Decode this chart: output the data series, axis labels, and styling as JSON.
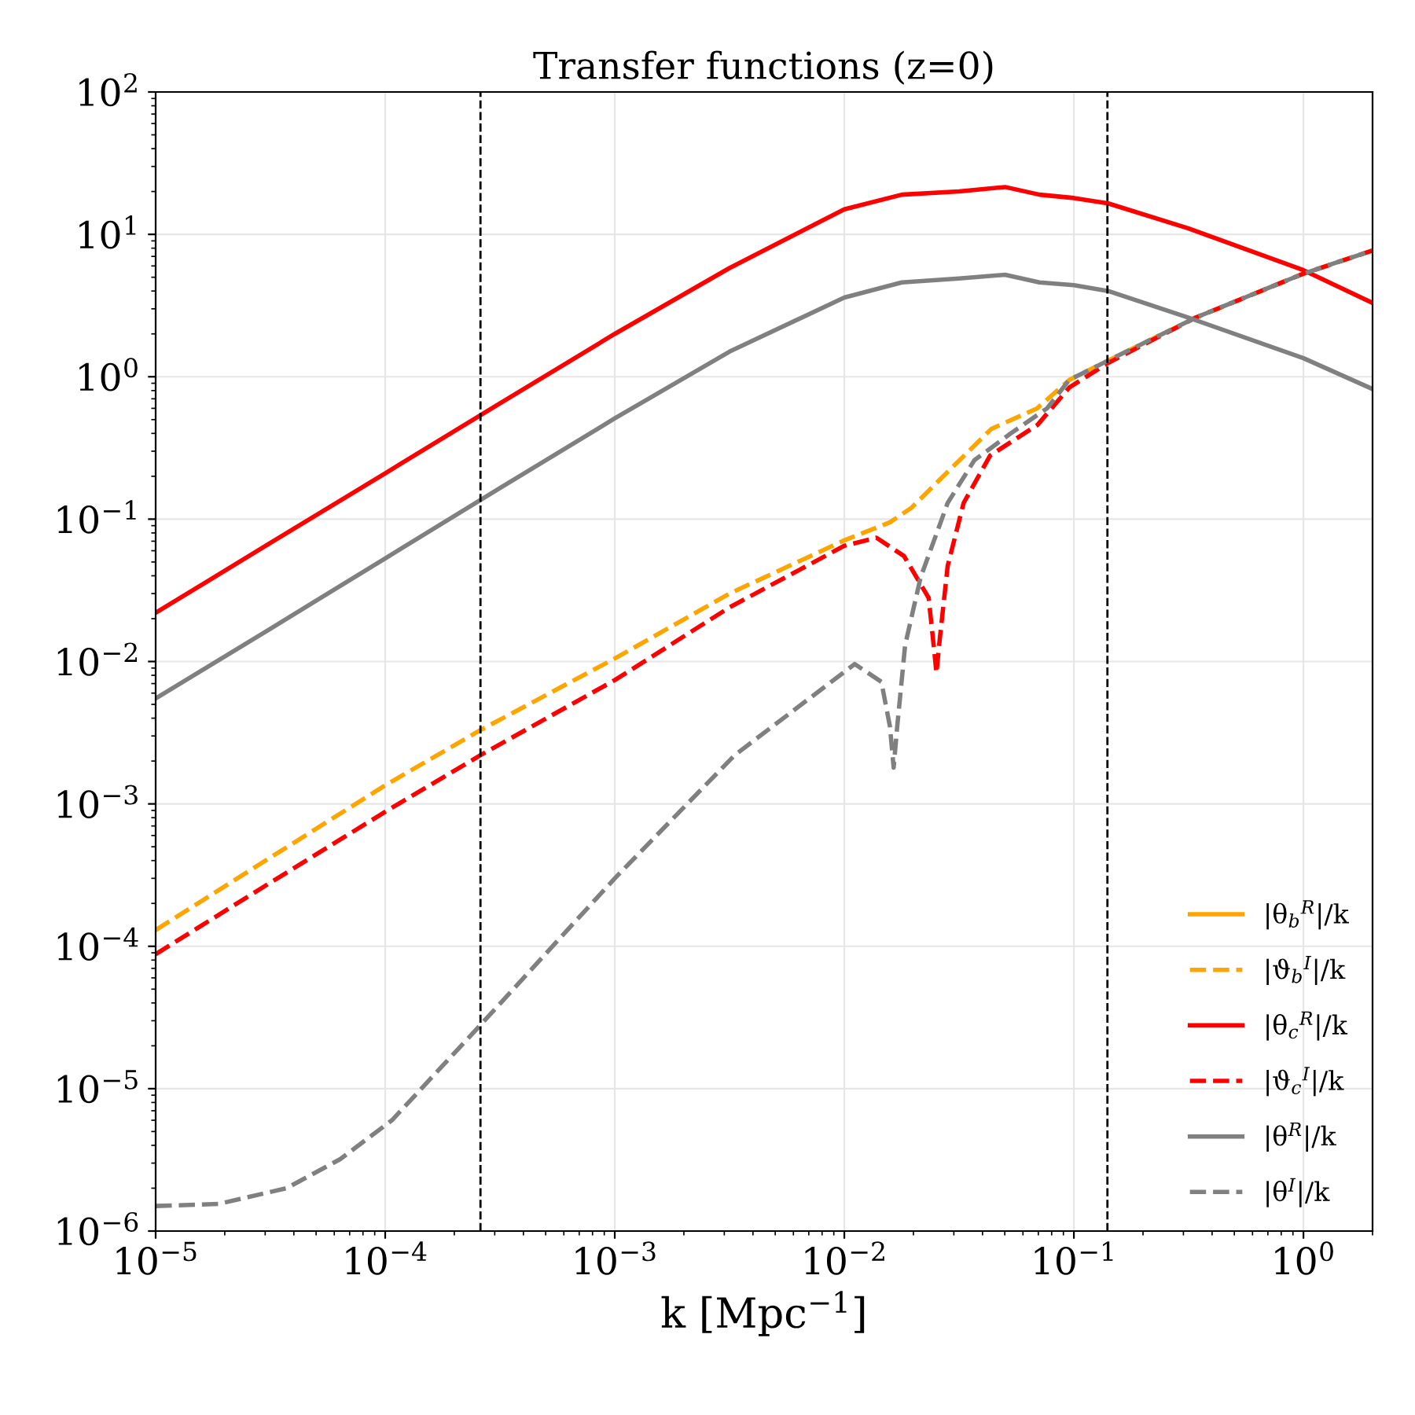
{
  "chart_data": {
    "type": "line",
    "title": "Transfer functions (z=0)",
    "xlabel": "k [Mpc$^{−1}$]",
    "log": "xy",
    "xlim": [
      1e-05,
      2
    ],
    "ylim": [
      1e-06,
      100
    ],
    "xticks": [
      {
        "value": 1e-05,
        "label": "10$^{−5}$"
      },
      {
        "value": 0.0001,
        "label": "10$^{−4}$"
      },
      {
        "value": 0.001,
        "label": "10$^{−3}$"
      },
      {
        "value": 0.01,
        "label": "10$^{−2}$"
      },
      {
        "value": 0.1,
        "label": "10$^{−1}$"
      },
      {
        "value": 1,
        "label": "10$^{0}$"
      }
    ],
    "yticks": [
      {
        "value": 1e-06,
        "label": "10$^{−6}$"
      },
      {
        "value": 1e-05,
        "label": "10$^{−5}$"
      },
      {
        "value": 0.0001,
        "label": "10$^{−4}$"
      },
      {
        "value": 0.001,
        "label": "10$^{−3}$"
      },
      {
        "value": 0.01,
        "label": "10$^{−2}$"
      },
      {
        "value": 0.1,
        "label": "10$^{−1}$"
      },
      {
        "value": 1,
        "label": "10$^{0}$"
      },
      {
        "value": 10,
        "label": "10$^{1}$"
      },
      {
        "value": 100,
        "label": "10$^{2}$"
      }
    ],
    "grid": true,
    "legend": "bottom right",
    "ref_lines": [
      {
        "axis": "x",
        "value": 0.00026,
        "color": "#000000",
        "line_style": "dashed"
      },
      {
        "axis": "x",
        "value": 0.14,
        "color": "#000000",
        "line_style": "dashed"
      }
    ],
    "series": [
      {
        "name": "|θ$_{b}$$^{R}$|/k",
        "color": "#ffa500",
        "line_style": "solid"
      },
      {
        "name": "|ϑ$_{b}$$^{I}$|/k",
        "color": "#ffa500",
        "line_style": "dashed",
        "x": [
          1e-05,
          3.16e-05,
          0.0001,
          0.00026,
          0.001,
          0.00316,
          0.01,
          0.0158,
          0.0196,
          0.0282,
          0.0437,
          0.0692,
          0.0955,
          0.141,
          0.339,
          1.0,
          2.0
        ],
        "values": [
          0.00013,
          0.00042,
          0.00135,
          0.0033,
          0.0105,
          0.03,
          0.071,
          0.095,
          0.12,
          0.215,
          0.43,
          0.6,
          0.95,
          1.3,
          2.6,
          5.3,
          7.7
        ]
      },
      {
        "name": "|θ$_{c}$$^{R}$|/k",
        "color": "#ff0000",
        "line_style": "solid",
        "x": [
          1e-05,
          3.16e-05,
          0.0001,
          0.000316,
          0.001,
          0.00316,
          0.01,
          0.0178,
          0.0316,
          0.0501,
          0.0708,
          0.1,
          0.141,
          0.316,
          1.0,
          2.0
        ],
        "values": [
          0.022,
          0.068,
          0.21,
          0.65,
          2.0,
          5.8,
          15,
          19,
          20,
          21.5,
          19,
          18,
          16.5,
          11,
          5.6,
          3.3
        ]
      },
      {
        "name": "|ϑ$_{c}$$^{I}$|/k",
        "color": "#ff0000",
        "line_style": "dashed",
        "x": [
          1e-05,
          3.16e-05,
          0.0001,
          0.00026,
          0.001,
          0.00316,
          0.01,
          0.0138,
          0.0182,
          0.0233,
          0.0245,
          0.0252,
          0.026,
          0.0282,
          0.0331,
          0.0432,
          0.0695,
          0.0955,
          0.141,
          0.339,
          1.0,
          2.0
        ],
        "values": [
          8.8e-05,
          0.00028,
          0.00088,
          0.0022,
          0.0074,
          0.024,
          0.065,
          0.074,
          0.055,
          0.028,
          0.013,
          0.0083,
          0.014,
          0.047,
          0.13,
          0.28,
          0.46,
          0.84,
          1.25,
          2.6,
          5.3,
          7.7
        ]
      },
      {
        "name": "|θ$^{R}$|/k",
        "color": "#808080",
        "line_style": "solid",
        "x": [
          1e-05,
          3.16e-05,
          0.0001,
          0.000316,
          0.001,
          0.00316,
          0.01,
          0.0178,
          0.0316,
          0.0501,
          0.0708,
          0.1,
          0.141,
          0.316,
          1.0,
          2.0
        ],
        "values": [
          0.0055,
          0.017,
          0.053,
          0.165,
          0.51,
          1.5,
          3.6,
          4.6,
          4.9,
          5.2,
          4.6,
          4.4,
          4.0,
          2.6,
          1.35,
          0.82
        ]
      },
      {
        "name": "|θ$^{I}$|/k",
        "color": "#808080",
        "line_style": "dashed",
        "x": [
          1e-05,
          1.88e-05,
          3.72e-05,
          6.37e-05,
          0.000107,
          0.00026,
          0.001,
          0.00333,
          0.0111,
          0.0145,
          0.0158,
          0.0164,
          0.017,
          0.0184,
          0.0215,
          0.0282,
          0.0369,
          0.0531,
          0.0764,
          0.0955,
          0.141,
          0.339,
          1.0,
          2.0
        ],
        "values": [
          1.5e-06,
          1.55e-06,
          2e-06,
          3.2e-06,
          6e-06,
          2.8e-05,
          0.0003,
          0.0022,
          0.0096,
          0.0072,
          0.0035,
          0.0018,
          0.0035,
          0.013,
          0.039,
          0.13,
          0.26,
          0.4,
          0.6,
          0.95,
          1.3,
          2.6,
          5.3,
          7.7
        ]
      }
    ]
  }
}
